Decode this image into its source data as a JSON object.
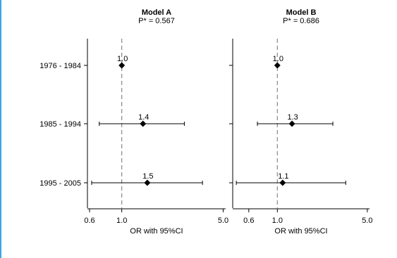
{
  "chart_data": [
    {
      "type": "forest",
      "title": "Model A",
      "subtitle": "P* = 0.567",
      "xlabel": "OR with 95%CI",
      "x_scale": "log",
      "xlim": [
        0.58,
        5.2
      ],
      "x_ticks": [
        "0.6",
        "1.0",
        "5.0"
      ],
      "x_tick_values": [
        0.6,
        1.0,
        5.0
      ],
      "reference_line": 1.0,
      "categories": [
        "1976 - 1984",
        "1985 - 1994",
        "1995 - 2005"
      ],
      "points": [
        {
          "label": "1976 - 1984",
          "or": 1.0,
          "or_label": "1.0",
          "ci_low": null,
          "ci_high": null
        },
        {
          "label": "1985 - 1994",
          "or": 1.4,
          "or_label": "1.4",
          "ci_low": 0.7,
          "ci_high": 2.7
        },
        {
          "label": "1995 - 2005",
          "or": 1.5,
          "or_label": "1.5",
          "ci_low": 0.62,
          "ci_high": 3.6
        }
      ]
    },
    {
      "type": "forest",
      "title": "Model B",
      "subtitle": "P* = 0.686",
      "xlabel": "OR with 95%CI",
      "x_scale": "log",
      "xlim": [
        0.45,
        5.2
      ],
      "x_ticks": [
        "0.6",
        "1.0",
        "5.0"
      ],
      "x_tick_values": [
        0.6,
        1.0,
        5.0
      ],
      "reference_line": 1.0,
      "categories": [
        "1976 - 1984",
        "1985 - 1994",
        "1995 - 2005"
      ],
      "points": [
        {
          "label": "1976 - 1984",
          "or": 1.0,
          "or_label": "1.0",
          "ci_low": null,
          "ci_high": null
        },
        {
          "label": "1985 - 1994",
          "or": 1.3,
          "or_label": "1.3",
          "ci_low": 0.7,
          "ci_high": 2.7
        },
        {
          "label": "1995 - 2005",
          "or": 1.1,
          "or_label": "1.1",
          "ci_low": 0.48,
          "ci_high": 3.4
        }
      ]
    }
  ]
}
